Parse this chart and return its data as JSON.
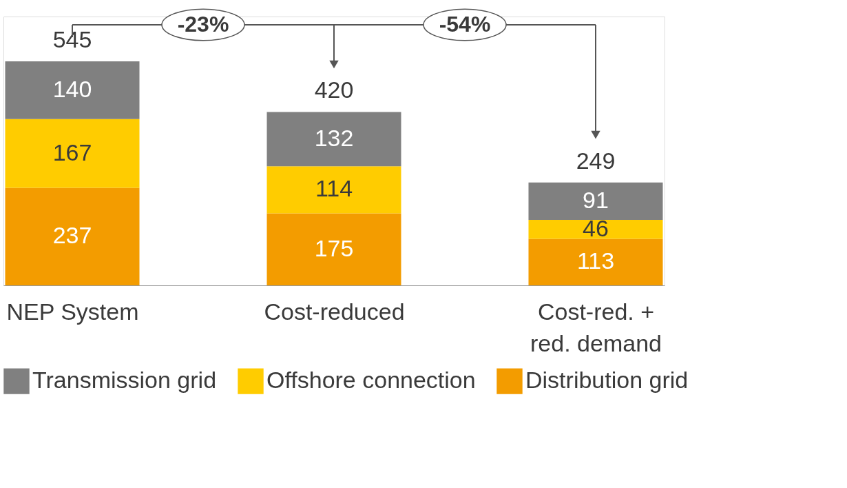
{
  "chart_data": {
    "type": "bar",
    "stacked": true,
    "data_labels": true,
    "legend": "bottom",
    "categories": [
      "NEP System",
      "Cost-reduced",
      "Cost-red. + red. demand"
    ],
    "series": [
      {
        "name": "Distribution grid",
        "color": "#f39c00",
        "values": [
          237,
          175,
          113
        ]
      },
      {
        "name": "Offshore connection",
        "color": "#ffcc00",
        "values": [
          167,
          114,
          46
        ]
      },
      {
        "name": "Transmission grid",
        "color": "#808080",
        "values": [
          140,
          132,
          91
        ]
      }
    ],
    "totals": [
      "545",
      "420",
      "249"
    ],
    "annotations": [
      "-23%",
      "-54%"
    ]
  }
}
